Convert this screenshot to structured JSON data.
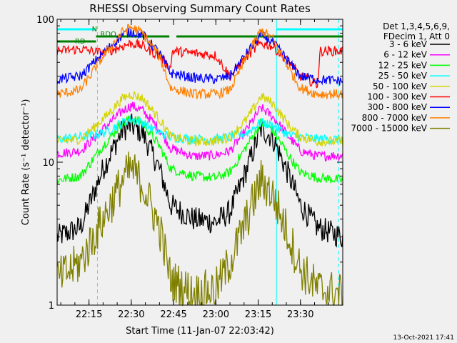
{
  "chart_data": {
    "type": "line",
    "title": "RHESSI Observing Summary Count Rates",
    "xlabel": "Start Time (11-Jan-07 22:03:42)",
    "ylabel": "Count Rate (s⁻¹ detector⁻¹)",
    "y_scale": "log",
    "ylim": [
      1,
      100
    ],
    "xlim": [
      "22:03:42",
      "23:45:00"
    ],
    "x_ticks": [
      "22:15",
      "22:30",
      "22:45",
      "23:00",
      "23:15",
      "23:30"
    ],
    "y_ticks": [
      "1",
      "10",
      "100"
    ],
    "legend_header": [
      "Det 1,3,4,5,6,9,",
      "FDecim 1, Att 0"
    ],
    "legend_position": "right",
    "timestamp": "13-Oct-2021 17:41",
    "flags": [
      {
        "label": "N",
        "color": "#00ffff",
        "intervals": [
          [
            "22:03:42",
            "22:17:30"
          ],
          [
            "23:21:30",
            "23:45:00"
          ]
        ]
      },
      {
        "label": "RDO",
        "color": "#008000",
        "intervals": [
          [
            "22:17:30",
            "22:43:30"
          ],
          [
            "22:46:00",
            "23:45:00"
          ]
        ]
      },
      {
        "label": "RD",
        "color": "#008000",
        "intervals": [
          [
            "22:03:42",
            "22:17:30"
          ]
        ]
      }
    ],
    "annotations": [
      {
        "text": "N",
        "time": "22:16:00"
      },
      {
        "text": "RDO",
        "time": "22:19:00"
      },
      {
        "text": "RD",
        "time": "22:10:00"
      }
    ],
    "vertical_markers": [
      {
        "time": "22:03:42",
        "style": "solid",
        "color": "#00ffff"
      },
      {
        "time": "22:18:00",
        "style": "dashed",
        "color": "#00ffff"
      },
      {
        "time": "23:21:30",
        "style": "solid",
        "color": "#00ffff"
      },
      {
        "time": "23:43:30",
        "style": "dashed",
        "color": "#00ffff"
      }
    ],
    "series": [
      {
        "name": "3 - 6 keV",
        "color": "#000000",
        "t": [
          "22:03:42",
          "22:12:00",
          "22:20:00",
          "22:27:00",
          "22:30:00",
          "22:34:00",
          "22:40:00",
          "22:44:00",
          "22:52:00",
          "23:00:00",
          "23:05:00",
          "23:11:00",
          "23:16:00",
          "23:20:00",
          "23:26:00",
          "23:30:00",
          "23:36:00",
          "23:45:00"
        ],
        "v": [
          3,
          3.5,
          9,
          17,
          18,
          16,
          9,
          5,
          4,
          3.8,
          4.5,
          9,
          17,
          15,
          8,
          5,
          3.5,
          3
        ]
      },
      {
        "name": "6 - 12 keV",
        "color": "#ff00ff",
        "t": [
          "22:03:42",
          "22:12:00",
          "22:20:00",
          "22:27:00",
          "22:30:00",
          "22:34:00",
          "22:40:00",
          "22:44:00",
          "22:52:00",
          "23:00:00",
          "23:05:00",
          "23:11:00",
          "23:16:00",
          "23:20:00",
          "23:26:00",
          "23:30:00",
          "23:36:00",
          "23:45:00"
        ],
        "v": [
          11.5,
          12,
          17,
          23,
          25,
          23,
          17,
          12.5,
          11,
          11.2,
          12,
          17,
          24,
          21,
          15,
          12,
          11,
          11.2
        ]
      },
      {
        "name": "12 - 25 keV",
        "color": "#00ff00",
        "t": [
          "22:03:42",
          "22:12:00",
          "22:20:00",
          "22:27:00",
          "22:30:00",
          "22:34:00",
          "22:40:00",
          "22:44:00",
          "22:52:00",
          "23:00:00",
          "23:05:00",
          "23:11:00",
          "23:16:00",
          "23:20:00",
          "23:26:00",
          "23:30:00",
          "23:36:00",
          "23:45:00"
        ],
        "v": [
          7.5,
          8,
          13,
          19,
          20,
          19,
          13,
          9,
          8,
          7.8,
          8.5,
          13,
          19,
          17,
          11,
          8.5,
          7.8,
          7.5
        ]
      },
      {
        "name": "25 - 50 keV",
        "color": "#00ffff",
        "t": [
          "22:03:42",
          "22:12:00",
          "22:20:00",
          "22:27:00",
          "22:30:00",
          "22:34:00",
          "22:40:00",
          "22:44:00",
          "22:52:00",
          "23:00:00",
          "23:05:00",
          "23:11:00",
          "23:16:00",
          "23:20:00",
          "23:26:00",
          "23:30:00",
          "23:36:00",
          "23:45:00"
        ],
        "v": [
          14.5,
          15,
          16,
          19,
          20,
          19,
          16,
          15,
          14.5,
          14.5,
          15,
          16,
          19,
          18,
          15.5,
          15,
          14.5,
          14.5
        ]
      },
      {
        "name": "50 - 100 keV",
        "color": "#d4d400",
        "t": [
          "22:03:42",
          "22:12:00",
          "22:20:00",
          "22:27:00",
          "22:30:00",
          "22:34:00",
          "22:40:00",
          "22:44:00",
          "22:52:00",
          "23:00:00",
          "23:05:00",
          "23:11:00",
          "23:16:00",
          "23:20:00",
          "23:26:00",
          "23:30:00",
          "23:36:00",
          "23:45:00"
        ],
        "v": [
          14,
          14.5,
          20,
          28,
          30,
          28,
          20,
          15,
          14,
          14,
          15,
          20,
          29,
          26,
          18,
          15,
          14,
          14
        ]
      },
      {
        "name": "100 - 300 keV",
        "color": "#ff0000",
        "t": [
          "22:03:42",
          "22:12:00",
          "22:20:00",
          "22:27:00",
          "22:30:00",
          "22:34:00",
          "22:40:00",
          "22:44:00",
          "22:44:30",
          "22:52:00",
          "23:00:00",
          "23:05:00",
          "23:11:00",
          "23:16:00",
          "23:20:00",
          "23:26:00",
          "23:30:00",
          "23:36:00",
          "23:37:00",
          "23:45:00"
        ],
        "v": [
          60,
          62,
          58,
          65,
          68,
          65,
          55,
          45,
          60,
          58,
          56,
          40,
          55,
          68,
          65,
          50,
          40,
          35,
          60,
          60
        ]
      },
      {
        "name": "300 - 800 keV",
        "color": "#0000ff",
        "t": [
          "22:03:42",
          "22:12:00",
          "22:20:00",
          "22:27:00",
          "22:30:00",
          "22:34:00",
          "22:40:00",
          "22:44:00",
          "22:52:00",
          "23:00:00",
          "23:05:00",
          "23:11:00",
          "23:16:00",
          "23:20:00",
          "23:26:00",
          "23:30:00",
          "23:36:00",
          "23:45:00"
        ],
        "v": [
          38,
          40,
          58,
          78,
          82,
          78,
          58,
          42,
          39,
          38,
          40,
          58,
          78,
          70,
          50,
          40,
          38,
          37
        ]
      },
      {
        "name": "800 - 7000 keV",
        "color": "#ff8000",
        "t": [
          "22:03:42",
          "22:12:00",
          "22:20:00",
          "22:27:00",
          "22:30:00",
          "22:34:00",
          "22:40:00",
          "22:44:00",
          "22:52:00",
          "23:00:00",
          "23:05:00",
          "23:11:00",
          "23:16:00",
          "23:20:00",
          "23:26:00",
          "23:30:00",
          "23:36:00",
          "23:45:00"
        ],
        "v": [
          30,
          32,
          55,
          82,
          88,
          80,
          55,
          33,
          30,
          30,
          32,
          55,
          84,
          74,
          45,
          33,
          30,
          30
        ]
      },
      {
        "name": "7000 - 15000 keV",
        "color": "#808000",
        "t": [
          "22:03:42",
          "22:12:00",
          "22:20:00",
          "22:27:00",
          "22:30:00",
          "22:34:00",
          "22:40:00",
          "22:44:00",
          "22:52:00",
          "23:00:00",
          "23:05:00",
          "23:11:00",
          "23:16:00",
          "23:20:00",
          "23:26:00",
          "23:30:00",
          "23:36:00",
          "23:45:00"
        ],
        "v": [
          1.5,
          2,
          4,
          7.5,
          9,
          7,
          3.5,
          1.5,
          1.2,
          1.3,
          2,
          4,
          7.5,
          6,
          3,
          1.8,
          1.3,
          1.2
        ]
      }
    ]
  }
}
